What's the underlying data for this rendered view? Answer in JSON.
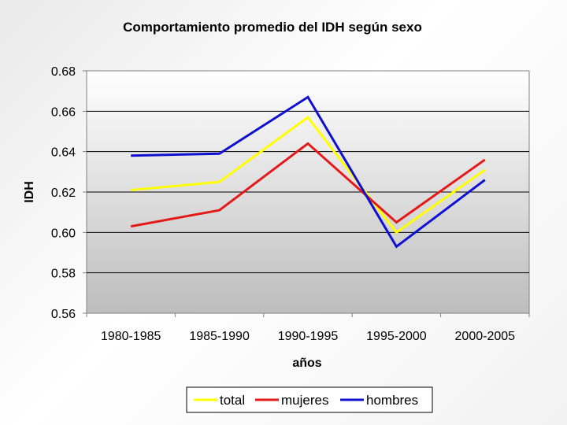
{
  "chart_data": {
    "type": "line",
    "title": "Comportamiento promedio del IDH según sexo",
    "xlabel": "años",
    "ylabel": "IDH",
    "categories": [
      "1980-1985",
      "1985-1990",
      "1990-1995",
      "1995-2000",
      "2000-2005"
    ],
    "yticks": [
      "0.56",
      "0.58",
      "0.60",
      "0.62",
      "0.64",
      "0.66",
      "0.68"
    ],
    "ylim": [
      0.56,
      0.68
    ],
    "grid": true,
    "legend_position": "bottom",
    "series": [
      {
        "name": "total",
        "color": "#ffff00",
        "values": [
          0.621,
          0.625,
          0.657,
          0.6,
          0.631
        ]
      },
      {
        "name": "mujeres",
        "color": "#e41a1a",
        "values": [
          0.603,
          0.611,
          0.644,
          0.605,
          0.636
        ]
      },
      {
        "name": "hombres",
        "color": "#1010d0",
        "values": [
          0.638,
          0.639,
          0.667,
          0.593,
          0.626
        ]
      }
    ]
  }
}
